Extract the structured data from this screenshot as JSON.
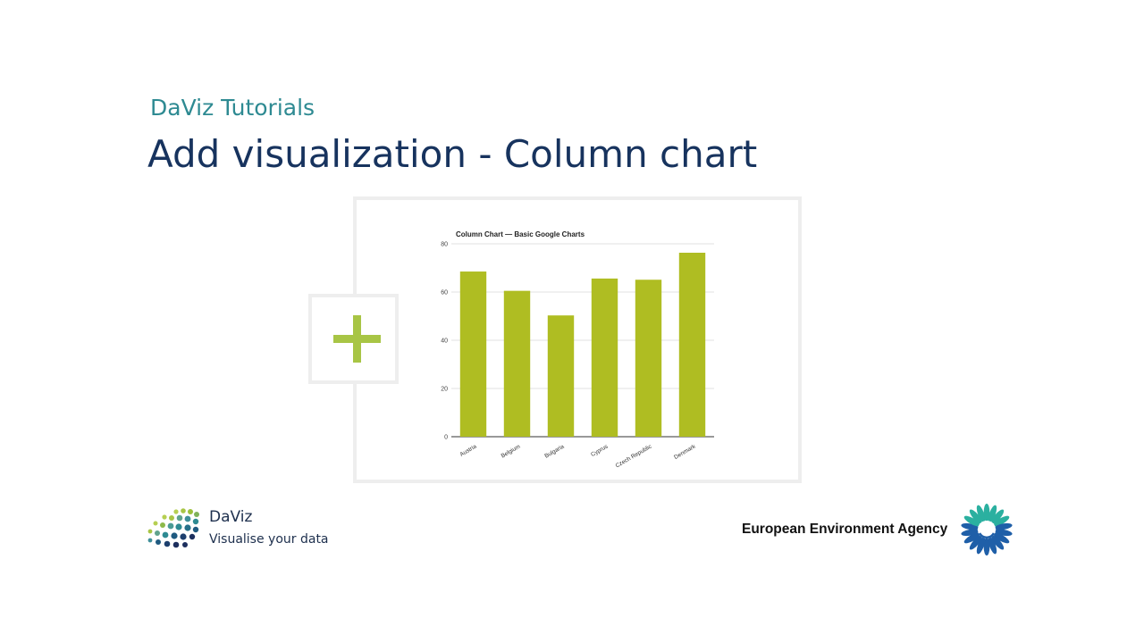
{
  "slide": {
    "subtitle": "DaViz Tutorials",
    "title": "Add visualization - Column chart"
  },
  "add_button": {
    "icon": "plus-icon",
    "color": "#a8c545"
  },
  "chart_data": {
    "type": "bar",
    "title": "Column Chart — Basic Google Charts",
    "categories": [
      "Austria",
      "Belgium",
      "Bulgaria",
      "Cyprus",
      "Czech Republic",
      "Denmark"
    ],
    "values": [
      68.5,
      60.5,
      50.3,
      65.6,
      65.1,
      76.3
    ],
    "ylim": [
      0,
      80
    ],
    "yticks": [
      0,
      20,
      40,
      60,
      80
    ],
    "grid": true,
    "bar_color": "#afbd22",
    "legend": "none"
  },
  "branding": {
    "daviz_name": "DaViz",
    "daviz_tagline": "Visualise your data",
    "eea_name": "European Environment Agency"
  }
}
